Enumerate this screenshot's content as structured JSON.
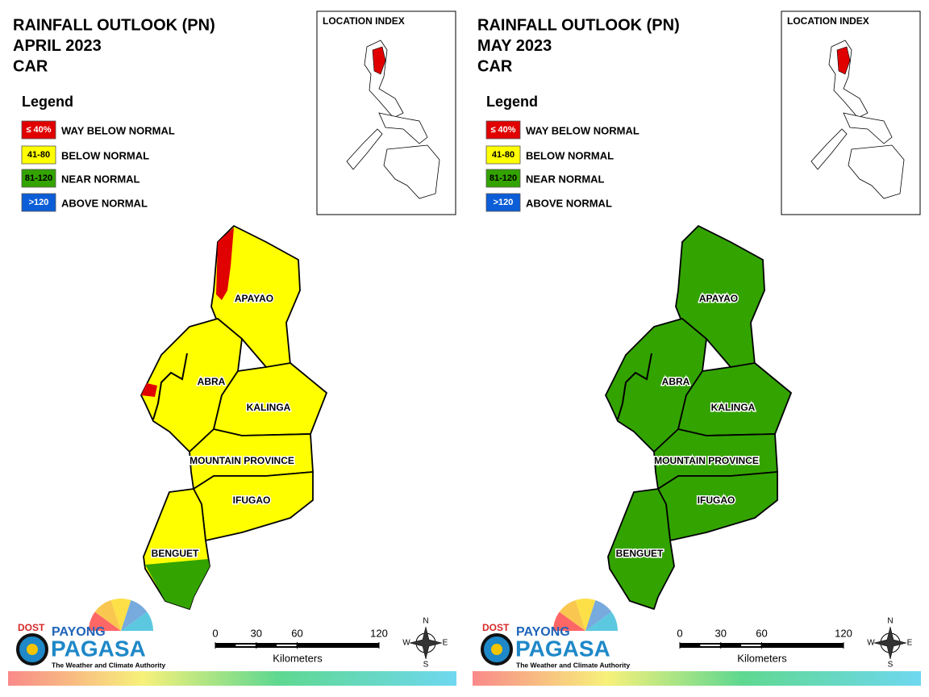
{
  "panels": [
    {
      "title": [
        "RAINFALL OUTLOOK (PN)",
        "APRIL 2023",
        "CAR"
      ],
      "location_index": "LOCATION INDEX",
      "legend": {
        "title": "Legend",
        "items": [
          {
            "range": "≤ 40%",
            "label": "WAY BELOW NORMAL",
            "color": "#e00000"
          },
          {
            "range": "41-80",
            "label": "BELOW NORMAL",
            "color": "#ffff00"
          },
          {
            "range": "81-120",
            "label": "NEAR NORMAL",
            "color": "#33a300"
          },
          {
            "range": ">120",
            "label": "ABOVE NORMAL",
            "color": "#0b5ed7"
          }
        ]
      },
      "provinces": [
        {
          "name": "APAYAO",
          "color": "#ffff00"
        },
        {
          "name": "ABRA",
          "color": "#ffff00"
        },
        {
          "name": "KALINGA",
          "color": "#ffff00"
        },
        {
          "name": "MOUNTAIN PROVINCE",
          "color": "#ffff00"
        },
        {
          "name": "IFUGAO",
          "color": "#ffff00"
        },
        {
          "name": "BENGUET",
          "color": "#ffff00"
        }
      ],
      "scale": {
        "ticks": [
          0,
          30,
          60,
          120
        ],
        "unit": "Kilometers"
      },
      "compass": [
        "N",
        "E",
        "S",
        "W"
      ],
      "logo": {
        "dost": "DOST",
        "payong": "PAYONG",
        "pagasa": "PAGASA",
        "tagline": "The Weather and Climate Authority"
      }
    },
    {
      "title": [
        "RAINFALL OUTLOOK (PN)",
        "MAY 2023",
        "CAR"
      ],
      "location_index": "LOCATION INDEX",
      "legend": {
        "title": "Legend",
        "items": [
          {
            "range": "≤ 40%",
            "label": "WAY BELOW NORMAL",
            "color": "#e00000"
          },
          {
            "range": "41-80",
            "label": "BELOW NORMAL",
            "color": "#ffff00"
          },
          {
            "range": "81-120",
            "label": "NEAR NORMAL",
            "color": "#33a300"
          },
          {
            "range": ">120",
            "label": "ABOVE NORMAL",
            "color": "#0b5ed7"
          }
        ]
      },
      "provinces": [
        {
          "name": "APAYAO",
          "color": "#33a300"
        },
        {
          "name": "ABRA",
          "color": "#33a300"
        },
        {
          "name": "KALINGA",
          "color": "#33a300"
        },
        {
          "name": "MOUNTAIN PROVINCE",
          "color": "#33a300"
        },
        {
          "name": "IFUGAO",
          "color": "#33a300"
        },
        {
          "name": "BENGUET",
          "color": "#33a300"
        }
      ],
      "scale": {
        "ticks": [
          0,
          30,
          60,
          120
        ],
        "unit": "Kilometers"
      },
      "compass": [
        "N",
        "E",
        "S",
        "W"
      ],
      "logo": {
        "dost": "DOST",
        "payong": "PAYONG",
        "pagasa": "PAGASA",
        "tagline": "The Weather and Climate Authority"
      }
    }
  ]
}
